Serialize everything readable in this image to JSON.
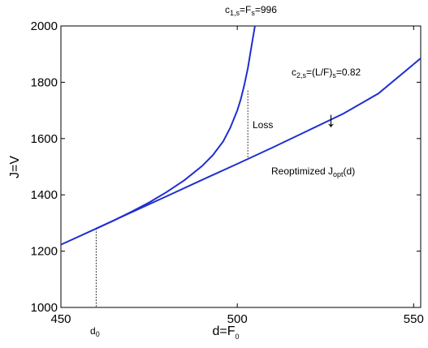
{
  "chart_data": {
    "type": "line",
    "title": "",
    "xlabel_main": "d=F",
    "xlabel_sub": "0",
    "ylabel": "J=V",
    "xlim": [
      450,
      552
    ],
    "ylim": [
      1000,
      2000
    ],
    "xticks": [
      "450",
      "500",
      "550"
    ],
    "yticks": [
      "1000",
      "1200",
      "1400",
      "1600",
      "1800",
      "2000"
    ],
    "grid": false,
    "series": [
      {
        "color": "#1f2fd0",
        "x": [
          450,
          460,
          470,
          480,
          490,
          500,
          510,
          520,
          530,
          540,
          552
        ],
        "y": [
          1223,
          1280,
          1338,
          1395,
          1453,
          1510,
          1568,
          1628,
          1688,
          1760,
          1885
        ]
      },
      {
        "color": "#1f2fd0",
        "x": [
          460,
          465,
          470,
          475,
          480,
          485,
          490,
          493,
          496,
          498,
          500,
          501,
          502,
          503,
          504,
          505
        ],
        "y": [
          1280,
          1309,
          1340,
          1373,
          1410,
          1452,
          1502,
          1540,
          1590,
          1638,
          1700,
          1740,
          1790,
          1850,
          1925,
          2000
        ]
      }
    ],
    "annotations": {
      "c1_main": "c",
      "c1_sub": "1,s",
      "c1_mid": "=F",
      "c1_sub2": "s",
      "c1_tail": "=996",
      "c2_main": "c",
      "c2_sub": "2,s",
      "c2_tail": "=(L/F)",
      "c2_sub2": "s",
      "c2_end": "=0.82",
      "loss": "Loss",
      "reopt_main": "Reoptimized J",
      "reopt_sub": "opt",
      "reopt_tail": "(d)",
      "d0_main": "d",
      "d0_sub": "0",
      "arrow": "↓"
    },
    "markers": {
      "d0": {
        "x": 460,
        "y": 1280
      },
      "loss": {
        "x": 503,
        "y_top": 1770,
        "y_bottom": 1530
      }
    }
  }
}
